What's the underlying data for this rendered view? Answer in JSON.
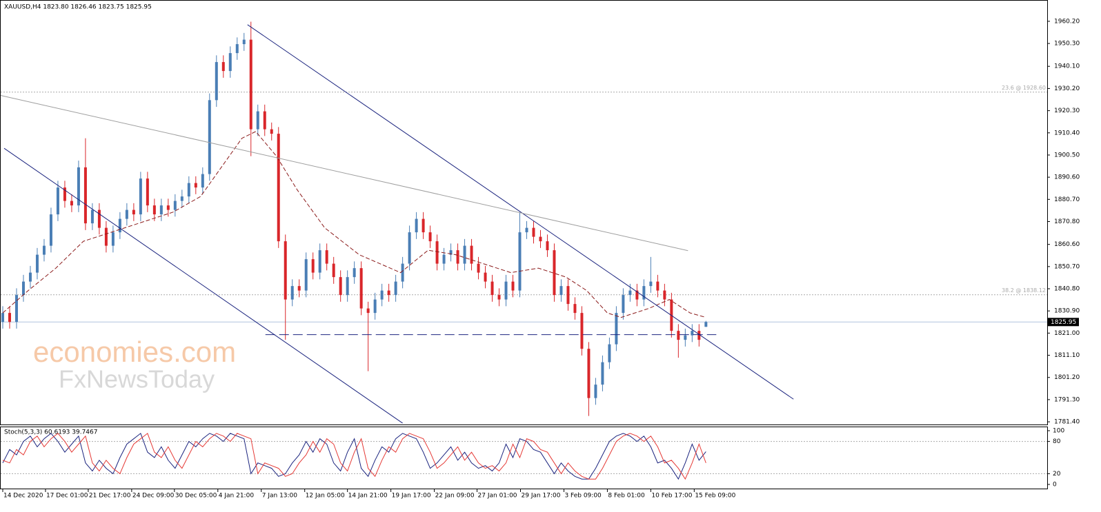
{
  "chart_data": [
    {
      "type": "candlestick",
      "title": "XAUUSD,H4  1823.80 1826.46 1823.75 1825.95",
      "watermark": [
        "economies.com",
        "FxNewsToday"
      ],
      "up_color": "#4a7eb5",
      "down_color": "#d9262a",
      "open": [
        1826,
        1830,
        1826,
        1838,
        1844,
        1848,
        1856,
        1860,
        1874,
        1886,
        1880,
        1878,
        1895,
        1870,
        1876,
        1868,
        1860,
        1866,
        1872,
        1876,
        1874,
        1890,
        1878,
        1874,
        1878,
        1876,
        1880,
        1882,
        1888,
        1886,
        1892,
        1925,
        1942,
        1938,
        1946,
        1950,
        1952,
        1912,
        1920,
        1912,
        1910,
        1862,
        1836,
        1842,
        1840,
        1854,
        1848,
        1858,
        1852,
        1846,
        1838,
        1846,
        1850,
        1832,
        1830,
        1836,
        1840,
        1838,
        1844,
        1852,
        1866,
        1872,
        1866,
        1862,
        1852,
        1856,
        1858,
        1852,
        1860,
        1852,
        1848,
        1844,
        1838,
        1836,
        1844,
        1840,
        1866,
        1868,
        1864,
        1862,
        1858,
        1838,
        1842,
        1834,
        1830,
        1814,
        1792,
        1798,
        1808,
        1816,
        1830,
        1838,
        1840,
        1836,
        1842,
        1844,
        1840,
        1836,
        1822,
        1818,
        1820,
        1822,
        1823.8
      ],
      "high": [
        1833,
        1833,
        1841,
        1847,
        1851,
        1859,
        1863,
        1877,
        1889,
        1889,
        1883,
        1898,
        1908,
        1879,
        1879,
        1871,
        1869,
        1875,
        1879,
        1879,
        1893,
        1893,
        1881,
        1881,
        1881,
        1883,
        1885,
        1891,
        1891,
        1895,
        1928,
        1945,
        1945,
        1949,
        1953,
        1955,
        1960,
        1923,
        1923,
        1915,
        1913,
        1865,
        1845,
        1845,
        1857,
        1857,
        1861,
        1861,
        1855,
        1849,
        1849,
        1853,
        1853,
        1835,
        1839,
        1843,
        1843,
        1847,
        1855,
        1869,
        1875,
        1875,
        1869,
        1865,
        1859,
        1861,
        1861,
        1863,
        1863,
        1855,
        1851,
        1847,
        1841,
        1847,
        1847,
        1875,
        1871,
        1871,
        1867,
        1865,
        1861,
        1845,
        1845,
        1837,
        1833,
        1817,
        1801,
        1811,
        1819,
        1833,
        1841,
        1843,
        1843,
        1845,
        1855,
        1847,
        1843,
        1839,
        1825,
        1823,
        1825,
        1825,
        1826.46
      ],
      "low": [
        1823,
        1823,
        1823,
        1835,
        1841,
        1845,
        1853,
        1857,
        1871,
        1877,
        1875,
        1875,
        1867,
        1867,
        1865,
        1857,
        1857,
        1863,
        1869,
        1871,
        1871,
        1875,
        1871,
        1871,
        1873,
        1873,
        1877,
        1879,
        1883,
        1883,
        1889,
        1922,
        1935,
        1935,
        1943,
        1947,
        1900,
        1909,
        1909,
        1907,
        1859,
        1818,
        1833,
        1837,
        1837,
        1845,
        1845,
        1849,
        1843,
        1835,
        1835,
        1843,
        1829,
        1804,
        1827,
        1833,
        1835,
        1835,
        1841,
        1849,
        1863,
        1863,
        1859,
        1849,
        1849,
        1853,
        1849,
        1849,
        1849,
        1845,
        1841,
        1835,
        1833,
        1833,
        1837,
        1837,
        1863,
        1861,
        1859,
        1855,
        1835,
        1835,
        1831,
        1827,
        1811,
        1784,
        1789,
        1795,
        1805,
        1813,
        1827,
        1835,
        1833,
        1833,
        1839,
        1837,
        1833,
        1819,
        1810,
        1815,
        1817,
        1815,
        1823.75
      ],
      "close": [
        1830,
        1826,
        1838,
        1844,
        1848,
        1856,
        1860,
        1874,
        1886,
        1880,
        1878,
        1895,
        1870,
        1876,
        1868,
        1860,
        1866,
        1872,
        1876,
        1874,
        1890,
        1878,
        1874,
        1878,
        1876,
        1880,
        1882,
        1888,
        1886,
        1892,
        1925,
        1942,
        1938,
        1946,
        1950,
        1952,
        1912,
        1920,
        1912,
        1910,
        1862,
        1836,
        1842,
        1840,
        1854,
        1848,
        1858,
        1852,
        1846,
        1838,
        1846,
        1850,
        1832,
        1830,
        1836,
        1840,
        1838,
        1844,
        1852,
        1866,
        1872,
        1866,
        1862,
        1852,
        1856,
        1858,
        1852,
        1860,
        1852,
        1848,
        1844,
        1838,
        1836,
        1844,
        1840,
        1866,
        1868,
        1864,
        1862,
        1858,
        1838,
        1842,
        1834,
        1830,
        1814,
        1792,
        1798,
        1808,
        1816,
        1830,
        1838,
        1840,
        1836,
        1842,
        1844,
        1840,
        1836,
        1822,
        1818,
        1820,
        1822,
        1818,
        1825.95
      ],
      "ma": {
        "color": "#8b1a1a",
        "x": [
          0,
          3.7,
          7.7,
          11.7,
          15.7,
          19.7,
          24.7,
          28.7,
          31.7,
          34.7,
          36.7,
          39.7,
          42.7,
          46.7,
          51.7,
          57.7,
          61.7,
          65.7,
          69.7,
          73.7,
          77.7,
          81.7,
          84.7,
          87.7,
          89.7,
          93.7,
          96.7,
          99.7,
          102
        ],
        "values": [
          1830,
          1840,
          1850,
          1862,
          1866,
          1870,
          1875,
          1882,
          1895,
          1908,
          1911,
          1900,
          1885,
          1868,
          1856,
          1848,
          1858,
          1856,
          1852,
          1848,
          1850,
          1846,
          1840,
          1830,
          1828,
          1832,
          1836,
          1830,
          1828
        ]
      },
      "trendlines": [
        {
          "color": "#1a237e",
          "x": [
            35.5,
            114.7
          ],
          "values": [
            1958.7,
            1791.5
          ]
        },
        {
          "color": "#1a237e",
          "x": [
            0.2,
            58
          ],
          "values": [
            1903.5,
            1780.8
          ]
        },
        {
          "color": "#9e9e9e",
          "x": [
            -0.3,
            99.4
          ],
          "values": [
            1927.1,
            1857.8
          ]
        }
      ],
      "support": {
        "color": "#1a237e",
        "x": [
          38.1,
          103.5
        ],
        "value": 1820.3
      },
      "fib_levels": [
        {
          "value": 1928.6,
          "label": "23.6 @ 1928.60"
        },
        {
          "value": 1838.12,
          "label": "38.2 @ 1838.12"
        }
      ],
      "last_price": {
        "value": 1825.95,
        "label": "1825.95"
      },
      "xlim": [
        -0.3,
        151.5
      ],
      "xticks": [
        {
          "value": 0,
          "label": "14 Dec 2020"
        },
        {
          "value": 6.2,
          "label": "17 Dec 01:00"
        },
        {
          "value": 12.4,
          "label": "21 Dec 17:00"
        },
        {
          "value": 18.7,
          "label": "24 Dec 09:00"
        },
        {
          "value": 24.9,
          "label": "30 Dec 05:00"
        },
        {
          "value": 31.2,
          "label": "4 Jan 21:00"
        },
        {
          "value": 37.5,
          "label": "7 Jan 13:00"
        },
        {
          "value": 43.8,
          "label": "12 Jan 05:00"
        },
        {
          "value": 50,
          "label": "14 Jan 21:00"
        },
        {
          "value": 56.3,
          "label": "19 Jan 17:00"
        },
        {
          "value": 62.6,
          "label": "22 Jan 09:00"
        },
        {
          "value": 68.8,
          "label": "27 Jan 01:00"
        },
        {
          "value": 75.1,
          "label": "29 Jan 17:00"
        },
        {
          "value": 81.4,
          "label": "3 Feb 09:00"
        },
        {
          "value": 87.7,
          "label": "8 Feb 01:00"
        },
        {
          "value": 94,
          "label": "10 Feb 17:00"
        },
        {
          "value": 100.3,
          "label": "15 Feb 09:00"
        }
      ],
      "ylim": [
        1780.2,
        1969.4
      ],
      "yticks": [
        {
          "value": 1960.2,
          "label": "1960.20"
        },
        {
          "value": 1950.3,
          "label": "1950.30"
        },
        {
          "value": 1940.1,
          "label": "1940.10"
        },
        {
          "value": 1930.2,
          "label": "1930.20"
        },
        {
          "value": 1920.3,
          "label": "1920.30"
        },
        {
          "value": 1910.4,
          "label": "1910.40"
        },
        {
          "value": 1900.5,
          "label": "1900.50"
        },
        {
          "value": 1890.6,
          "label": "1890.60"
        },
        {
          "value": 1880.7,
          "label": "1880.70"
        },
        {
          "value": 1870.8,
          "label": "1870.80"
        },
        {
          "value": 1860.6,
          "label": "1860.60"
        },
        {
          "value": 1850.7,
          "label": "1850.70"
        },
        {
          "value": 1840.8,
          "label": "1840.80"
        },
        {
          "value": 1830.9,
          "label": "1830.90"
        },
        {
          "value": 1821,
          "label": "1821.00"
        },
        {
          "value": 1811.1,
          "label": "1811.10"
        },
        {
          "value": 1801.2,
          "label": "1801.20"
        },
        {
          "value": 1791.3,
          "label": "1791.30"
        },
        {
          "value": 1781.4,
          "label": "1781.40"
        }
      ]
    },
    {
      "type": "line",
      "title": "Stoch(5,3,3) 60.6193 39.7467",
      "series": [
        {
          "color": "#1a237e",
          "values": [
            40,
            65,
            55,
            80,
            90,
            70,
            85,
            95,
            80,
            60,
            75,
            90,
            40,
            25,
            45,
            30,
            20,
            50,
            75,
            85,
            95,
            60,
            50,
            70,
            45,
            30,
            55,
            80,
            70,
            85,
            95,
            90,
            80,
            95,
            90,
            85,
            20,
            40,
            35,
            30,
            15,
            20,
            40,
            55,
            80,
            60,
            85,
            75,
            40,
            25,
            60,
            85,
            30,
            15,
            45,
            70,
            60,
            85,
            95,
            90,
            85,
            60,
            30,
            40,
            55,
            70,
            45,
            60,
            40,
            30,
            35,
            25,
            40,
            75,
            50,
            85,
            80,
            65,
            60,
            40,
            20,
            40,
            25,
            15,
            10,
            10,
            30,
            55,
            80,
            90,
            95,
            90,
            80,
            90,
            70,
            40,
            45,
            30,
            10,
            40,
            75,
            45,
            61
          ]
        },
        {
          "color": "#e53935",
          "values": [
            45,
            40,
            65,
            55,
            80,
            90,
            70,
            85,
            95,
            80,
            60,
            75,
            90,
            40,
            25,
            45,
            30,
            20,
            50,
            75,
            85,
            95,
            60,
            50,
            70,
            45,
            30,
            55,
            80,
            70,
            85,
            95,
            90,
            80,
            95,
            90,
            85,
            20,
            40,
            35,
            30,
            15,
            20,
            40,
            55,
            80,
            60,
            85,
            75,
            40,
            25,
            60,
            85,
            30,
            15,
            45,
            70,
            60,
            85,
            95,
            90,
            85,
            60,
            30,
            40,
            55,
            70,
            45,
            60,
            40,
            30,
            35,
            25,
            40,
            75,
            50,
            85,
            80,
            65,
            60,
            40,
            20,
            40,
            25,
            15,
            10,
            10,
            30,
            55,
            80,
            90,
            95,
            90,
            80,
            90,
            70,
            40,
            45,
            30,
            10,
            40,
            75,
            40
          ]
        }
      ],
      "levels": [
        80,
        20
      ],
      "ylim": [
        0,
        100
      ],
      "yticks": [
        100,
        80,
        20,
        0
      ]
    }
  ]
}
